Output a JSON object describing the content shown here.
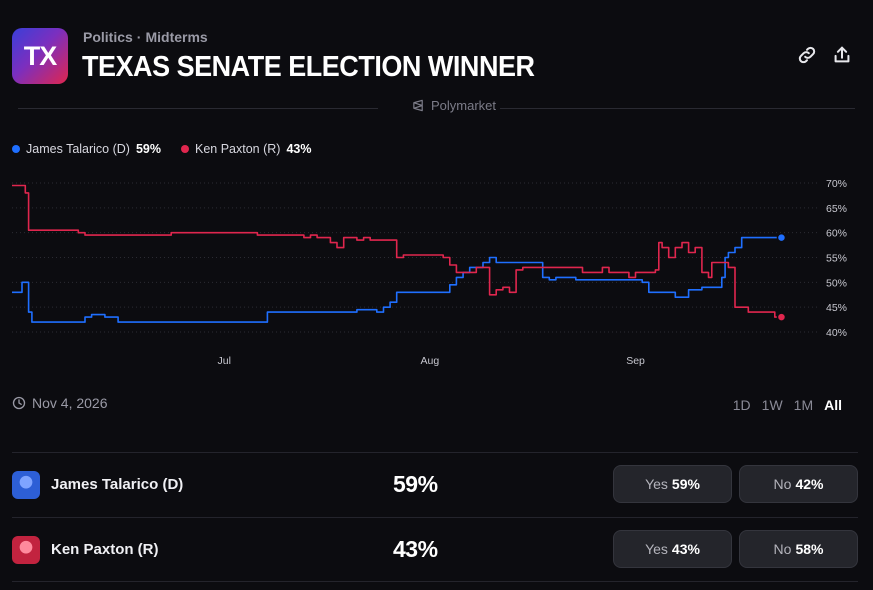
{
  "header": {
    "category": "Politics",
    "separator": "·",
    "subcategory": "Midterms",
    "title": "TEXAS SENATE ELECTION WINNER",
    "logo_text": "TX",
    "source": "Polymarket"
  },
  "colors": {
    "dem": "#1f6fff",
    "rep": "#e0264e",
    "bg": "#0c0c10"
  },
  "chart_data": {
    "type": "line",
    "x_tick_labels": [
      "Jul",
      "Aug",
      "Sep"
    ],
    "y_tick_labels": [
      "70%",
      "65%",
      "60%",
      "55%",
      "50%",
      "45%",
      "40%"
    ],
    "ylim": [
      40,
      70
    ],
    "x_range_days": [
      0,
      120
    ],
    "x_tick_days": [
      32,
      63,
      94
    ],
    "series": [
      {
        "name": "James Talarico (D)",
        "legend_value": "59%",
        "color": "#1f6fff",
        "points": [
          [
            0,
            48
          ],
          [
            1.5,
            50
          ],
          [
            2.5,
            44
          ],
          [
            3,
            42
          ],
          [
            10,
            42
          ],
          [
            11,
            43
          ],
          [
            12,
            43.5
          ],
          [
            13,
            43.5
          ],
          [
            14,
            43
          ],
          [
            16,
            42
          ],
          [
            38,
            42
          ],
          [
            38.5,
            44
          ],
          [
            51,
            44
          ],
          [
            52,
            44.5
          ],
          [
            54,
            44.5
          ],
          [
            55,
            44
          ],
          [
            56,
            45
          ],
          [
            57,
            46
          ],
          [
            58,
            48
          ],
          [
            65,
            48
          ],
          [
            66,
            49.5
          ],
          [
            67,
            51
          ],
          [
            68,
            52
          ],
          [
            69,
            53
          ],
          [
            71,
            54
          ],
          [
            72,
            55
          ],
          [
            73,
            54
          ],
          [
            79,
            54
          ],
          [
            80,
            51
          ],
          [
            81,
            50.5
          ],
          [
            82,
            51
          ],
          [
            84,
            51
          ],
          [
            85,
            50.5
          ],
          [
            93,
            50.5
          ],
          [
            95,
            50
          ],
          [
            96,
            48
          ],
          [
            100,
            47
          ],
          [
            102,
            48.5
          ],
          [
            104,
            49
          ],
          [
            106,
            49
          ],
          [
            107,
            51
          ],
          [
            107.5,
            55
          ],
          [
            108,
            56
          ],
          [
            109,
            57
          ],
          [
            110,
            59
          ],
          [
            116,
            59
          ]
        ]
      },
      {
        "name": "Ken Paxton (R)",
        "legend_value": "43%",
        "color": "#e0264e",
        "points": [
          [
            0,
            69.5
          ],
          [
            2,
            68
          ],
          [
            2.5,
            60.5
          ],
          [
            10,
            60
          ],
          [
            11,
            59.5
          ],
          [
            23,
            59.5
          ],
          [
            24,
            60
          ],
          [
            36,
            60
          ],
          [
            37,
            59.5
          ],
          [
            41,
            59.5
          ],
          [
            44,
            59
          ],
          [
            45,
            59.5
          ],
          [
            46,
            59
          ],
          [
            47,
            59
          ],
          [
            48,
            58
          ],
          [
            49,
            57
          ],
          [
            50,
            59
          ],
          [
            52,
            58.5
          ],
          [
            53,
            59
          ],
          [
            54,
            58.5
          ],
          [
            57,
            58.5
          ],
          [
            58,
            55
          ],
          [
            59,
            55.5
          ],
          [
            65,
            55
          ],
          [
            66,
            53.5
          ],
          [
            67,
            52
          ],
          [
            68,
            52
          ],
          [
            70,
            53
          ],
          [
            72,
            47.5
          ],
          [
            73,
            48.5
          ],
          [
            74,
            49
          ],
          [
            75,
            48
          ],
          [
            76,
            52.5
          ],
          [
            77,
            53
          ],
          [
            85,
            53
          ],
          [
            86,
            52
          ],
          [
            88,
            52
          ],
          [
            89,
            53
          ],
          [
            90,
            52
          ],
          [
            92,
            52
          ],
          [
            93,
            51
          ],
          [
            94,
            52
          ],
          [
            97,
            52.5
          ],
          [
            97.5,
            58
          ],
          [
            98,
            57
          ],
          [
            99,
            55
          ],
          [
            100,
            57
          ],
          [
            101,
            58
          ],
          [
            102,
            56
          ],
          [
            103,
            57
          ],
          [
            104,
            52
          ],
          [
            105,
            51
          ],
          [
            105.5,
            54
          ],
          [
            107,
            54
          ],
          [
            108,
            53
          ],
          [
            109,
            45
          ],
          [
            111,
            44
          ],
          [
            114,
            44
          ],
          [
            115,
            43
          ],
          [
            116,
            43
          ]
        ]
      }
    ]
  },
  "footer": {
    "date": "Nov 4, 2026",
    "ranges": [
      "1D",
      "1W",
      "1M",
      "All"
    ],
    "active_range": "All"
  },
  "outcomes": [
    {
      "name": "James Talarico (D)",
      "percent": "59%",
      "yes_label": "Yes",
      "yes_value": "59%",
      "no_label": "No",
      "no_value": "42%",
      "avatar_color": "#2d5fd6"
    },
    {
      "name": "Ken Paxton (R)",
      "percent": "43%",
      "yes_label": "Yes",
      "yes_value": "43%",
      "no_label": "No",
      "no_value": "58%",
      "avatar_color": "#c2233f"
    }
  ]
}
